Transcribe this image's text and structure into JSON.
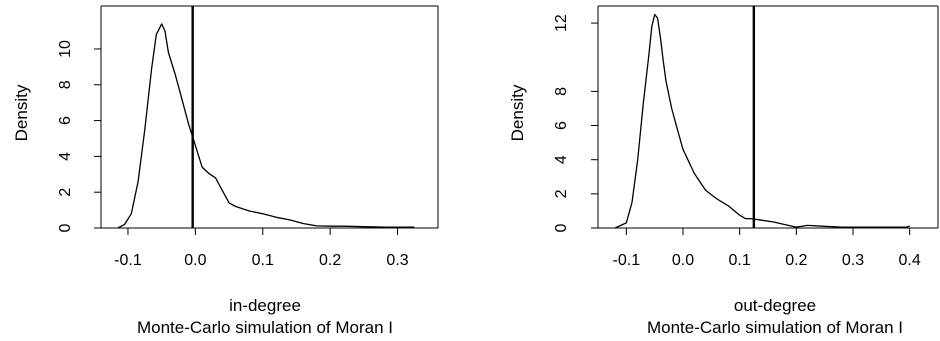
{
  "colors": {
    "background": "#ffffff",
    "ink": "#000000",
    "zero_line": "#bfbfbf"
  },
  "chart_data": [
    {
      "type": "line",
      "title": "",
      "xlabel": "in-degree",
      "subtitle": "Monte-Carlo simulation of Moran I",
      "ylabel": "Density",
      "xlim": [
        -0.14,
        0.36
      ],
      "ylim": [
        0,
        12.4
      ],
      "xticks": [
        -0.1,
        0.0,
        0.1,
        0.2,
        0.3
      ],
      "xtick_labels": [
        "-0.1",
        "0.0",
        "0.1",
        "0.2",
        "0.3"
      ],
      "yticks": [
        0,
        2,
        4,
        6,
        8,
        10
      ],
      "ytick_labels": [
        "0",
        "2",
        "4",
        "6",
        "8",
        "10"
      ],
      "grid": false,
      "reference_line_x": -0.004,
      "series": [
        {
          "x": [
            -0.115,
            -0.105,
            -0.095,
            -0.085,
            -0.075,
            -0.065,
            -0.058,
            -0.05,
            -0.045,
            -0.04,
            -0.03,
            -0.02,
            -0.01,
            0.0,
            0.01,
            0.02,
            0.03,
            0.04,
            0.05,
            0.06,
            0.08,
            0.1,
            0.12,
            0.14,
            0.16,
            0.18,
            0.2,
            0.22,
            0.25,
            0.28,
            0.3,
            0.325
          ],
          "y": [
            0.0,
            0.2,
            0.8,
            2.6,
            5.5,
            8.9,
            10.8,
            11.4,
            11.0,
            9.8,
            8.6,
            7.2,
            5.8,
            4.6,
            3.4,
            3.05,
            2.8,
            2.1,
            1.4,
            1.2,
            0.95,
            0.8,
            0.6,
            0.45,
            0.25,
            0.12,
            0.1,
            0.1,
            0.07,
            0.05,
            0.05,
            0.05
          ]
        }
      ]
    },
    {
      "type": "line",
      "title": "",
      "xlabel": "out-degree",
      "subtitle": "Monte-Carlo simulation of Moran I",
      "ylabel": "Density",
      "xlim": [
        -0.15,
        0.45
      ],
      "ylim": [
        0,
        13.0
      ],
      "xticks": [
        -0.1,
        0.0,
        0.1,
        0.2,
        0.3,
        0.4
      ],
      "xtick_labels": [
        "-0.1",
        "0.0",
        "0.1",
        "0.2",
        "0.3",
        "0.4"
      ],
      "yticks": [
        0,
        2,
        4,
        6,
        8,
        12
      ],
      "ytick_labels": [
        "0",
        "2",
        "4",
        "6",
        "8",
        "12"
      ],
      "grid": false,
      "reference_line_x": 0.125,
      "series": [
        {
          "x": [
            -0.12,
            -0.1,
            -0.09,
            -0.08,
            -0.07,
            -0.06,
            -0.055,
            -0.05,
            -0.045,
            -0.04,
            -0.035,
            -0.03,
            -0.02,
            -0.01,
            0.0,
            0.02,
            0.04,
            0.06,
            0.08,
            0.1,
            0.11,
            0.12,
            0.14,
            0.16,
            0.18,
            0.2,
            0.22,
            0.25,
            0.28,
            0.395,
            0.4
          ],
          "y": [
            0.0,
            0.3,
            1.5,
            4.0,
            7.3,
            10.2,
            11.8,
            12.5,
            12.3,
            11.2,
            9.8,
            8.6,
            7.0,
            5.8,
            4.6,
            3.2,
            2.2,
            1.7,
            1.3,
            0.75,
            0.55,
            0.55,
            0.45,
            0.35,
            0.2,
            0.05,
            0.15,
            0.1,
            0.05,
            0.05,
            0.12
          ]
        }
      ]
    }
  ]
}
